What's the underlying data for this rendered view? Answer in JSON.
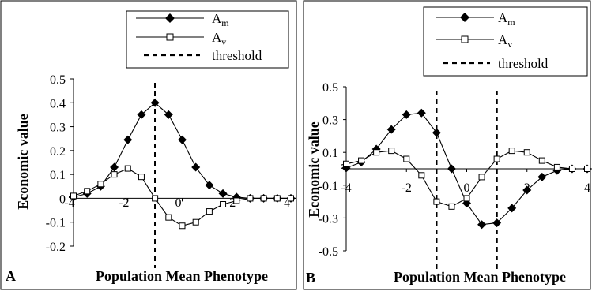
{
  "chart_data": [
    {
      "type": "line",
      "panel_label": "A",
      "xlabel": "Population Mean Phenotype",
      "ylabel": "Economic value",
      "xlim": [
        -4,
        4
      ],
      "ylim": [
        -0.2,
        0.5
      ],
      "xticks": [
        "-4",
        "-2",
        "0",
        "2",
        "4"
      ],
      "yticks": [
        "0.5",
        "0.4",
        "0.3",
        "0.2",
        "0.1",
        "0",
        "-0.1",
        "-0.2"
      ],
      "ytick_values": [
        0.5,
        0.4,
        0.3,
        0.2,
        0.1,
        0,
        -0.1,
        -0.2
      ],
      "legend": {
        "position": "top-right",
        "threshold_label": "threshold"
      },
      "series": [
        {
          "name": "A",
          "subscript": "m",
          "marker": "diamond-filled",
          "x": [
            -4.5,
            -4,
            -3.5,
            -3,
            -2.5,
            -2,
            -1.5,
            -1,
            -0.5,
            0,
            0.5,
            1,
            1.5,
            2,
            2.5,
            3,
            3.5,
            4,
            4.5
          ],
          "y": [
            0.0,
            0.005,
            0.02,
            0.05,
            0.13,
            0.245,
            0.35,
            0.4,
            0.35,
            0.245,
            0.13,
            0.055,
            0.02,
            0.005,
            0.0,
            0.0,
            0.0,
            0.0,
            0.0
          ]
        },
        {
          "name": "A",
          "subscript": "v",
          "marker": "square-open",
          "x": [
            -4.5,
            -4,
            -3.5,
            -3,
            -2.5,
            -2,
            -1.5,
            -1,
            -0.5,
            0,
            0.5,
            1,
            1.5,
            2,
            2.5,
            3,
            3.5,
            4,
            4.5
          ],
          "y": [
            0.0,
            0.01,
            0.03,
            0.06,
            0.1,
            0.125,
            0.09,
            0.0,
            -0.08,
            -0.115,
            -0.1,
            -0.055,
            -0.025,
            -0.01,
            0.0,
            0.0,
            0.0,
            0.0,
            0.0
          ]
        }
      ],
      "thresholds": [
        -1
      ]
    },
    {
      "type": "line",
      "panel_label": "B",
      "xlabel": "Population Mean Phenotype",
      "ylabel": "Economic value",
      "xlim": [
        -4,
        4
      ],
      "ylim": [
        -0.5,
        0.5
      ],
      "xticks": [
        "-4",
        "-2",
        "0",
        "2",
        "4"
      ],
      "yticks": [
        "0.5",
        "0.3",
        "0.1",
        "-0.1",
        "-0.3",
        "-0.5"
      ],
      "ytick_values": [
        0.5,
        0.3,
        0.1,
        -0.1,
        -0.3,
        -0.5
      ],
      "legend": {
        "position": "top-right",
        "threshold_label": "threshold"
      },
      "series": [
        {
          "name": "A",
          "subscript": "m",
          "marker": "diamond-filled",
          "x": [
            -4.5,
            -4,
            -3.5,
            -3,
            -2.5,
            -2,
            -1.5,
            -1,
            -0.5,
            0,
            0.5,
            1,
            1.5,
            2,
            2.5,
            3,
            3.5,
            4,
            4.5
          ],
          "y": [
            0.0,
            0.005,
            0.04,
            0.12,
            0.24,
            0.33,
            0.34,
            0.22,
            0.0,
            -0.21,
            -0.34,
            -0.33,
            -0.24,
            -0.13,
            -0.05,
            -0.01,
            0.0,
            0.0,
            0.0
          ]
        },
        {
          "name": "A",
          "subscript": "v",
          "marker": "square-open",
          "x": [
            -4.5,
            -4,
            -3.5,
            -3,
            -2.5,
            -2,
            -1.5,
            -1,
            -0.5,
            0,
            0.5,
            1,
            1.5,
            2,
            2.5,
            3,
            3.5,
            4,
            4.5
          ],
          "y": [
            0.01,
            0.03,
            0.05,
            0.1,
            0.11,
            0.06,
            -0.04,
            -0.2,
            -0.23,
            -0.18,
            -0.05,
            0.06,
            0.11,
            0.1,
            0.05,
            0.01,
            0.0,
            0.0,
            0.0
          ]
        }
      ],
      "thresholds": [
        -1,
        1
      ]
    }
  ]
}
